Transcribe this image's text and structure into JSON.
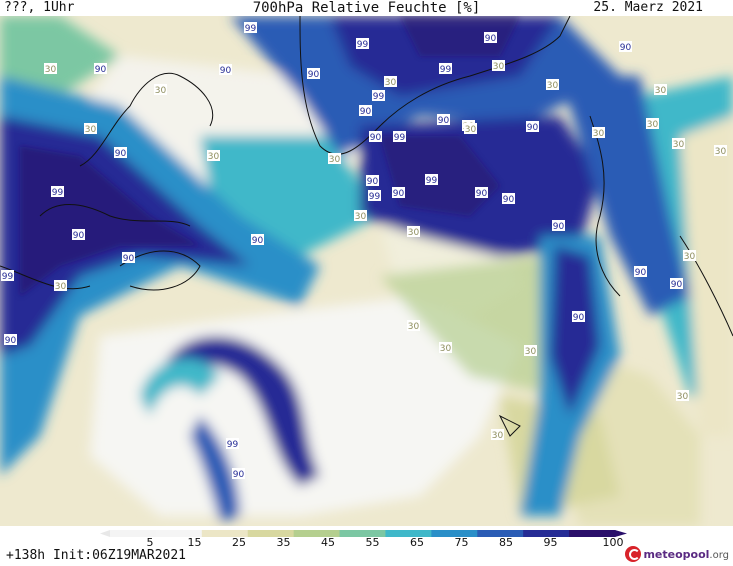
{
  "header": {
    "left": "???, 1Uhr",
    "title": "700hPa Relative Feuchte [%]",
    "right": "25. Maerz 2021"
  },
  "footer": {
    "run_info": "+138h Init:06Z19MAR2021",
    "brand": "meteopool",
    "brand_ext": ".org"
  },
  "legend": {
    "ticks": [
      "5",
      "15",
      "25",
      "35",
      "45",
      "55",
      "65",
      "75",
      "85",
      "95",
      "100"
    ],
    "colors": [
      "#f4f4f4",
      "#f5f5f5",
      "#ece6c6",
      "#d8d8a0",
      "#b5cf8f",
      "#7cc7a3",
      "#3fb8c9",
      "#2a8fc8",
      "#2a5cb5",
      "#262c95",
      "#2a0f6a"
    ]
  },
  "contour_labels": [
    {
      "text": "99"
    },
    {
      "text": "90"
    },
    {
      "text": "90"
    },
    {
      "text": "99"
    },
    {
      "text": "90"
    },
    {
      "text": "90"
    },
    {
      "text": "30"
    },
    {
      "text": "30"
    },
    {
      "text": "90"
    },
    {
      "text": "30"
    },
    {
      "text": "90"
    },
    {
      "text": "99"
    },
    {
      "text": "90"
    },
    {
      "text": "90"
    },
    {
      "text": "30"
    },
    {
      "text": "99"
    },
    {
      "text": "90"
    },
    {
      "text": "30"
    },
    {
      "text": "99"
    },
    {
      "text": "99"
    },
    {
      "text": "30"
    },
    {
      "text": "90"
    },
    {
      "text": "30"
    },
    {
      "text": "90"
    },
    {
      "text": "30"
    },
    {
      "text": "90"
    },
    {
      "text": "99"
    },
    {
      "text": "90"
    },
    {
      "text": "30"
    },
    {
      "text": "90"
    },
    {
      "text": "90"
    },
    {
      "text": "30"
    },
    {
      "text": "99"
    },
    {
      "text": "90"
    },
    {
      "text": "30"
    },
    {
      "text": "90"
    },
    {
      "text": "30"
    },
    {
      "text": "90"
    },
    {
      "text": "30"
    },
    {
      "text": "99"
    },
    {
      "text": "90"
    },
    {
      "text": "90"
    },
    {
      "text": "30"
    },
    {
      "text": "30"
    },
    {
      "text": "90"
    },
    {
      "text": "30"
    },
    {
      "text": "90"
    },
    {
      "text": "30"
    },
    {
      "text": "99"
    },
    {
      "text": "90"
    },
    {
      "text": "30"
    },
    {
      "text": "30"
    },
    {
      "text": "30"
    },
    {
      "text": "30"
    },
    {
      "text": "30"
    },
    {
      "text": "30"
    },
    {
      "text": "30"
    }
  ]
}
